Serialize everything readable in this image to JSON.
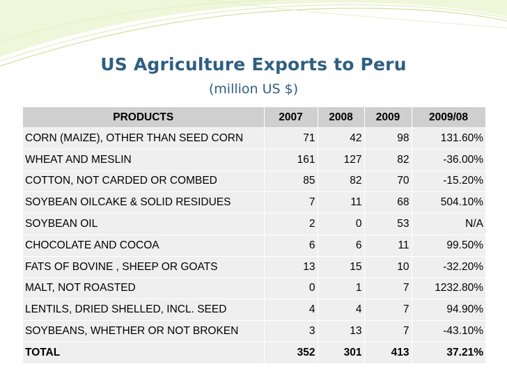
{
  "slide": {
    "title": "US Agriculture Exports to Peru",
    "subtitle": "(million US $)"
  },
  "table": {
    "headers": [
      "PRODUCTS",
      "2007",
      "2008",
      "2009",
      "2009/08"
    ],
    "rows": [
      [
        "CORN (MAIZE), OTHER THAN SEED CORN",
        "71",
        "42",
        "98",
        "131.60%"
      ],
      [
        "WHEAT AND MESLIN",
        "161",
        "127",
        "82",
        "-36.00%"
      ],
      [
        "COTTON, NOT CARDED OR COMBED",
        "85",
        "82",
        "70",
        "-15.20%"
      ],
      [
        "SOYBEAN OILCAKE & SOLID RESIDUES",
        "7",
        "11",
        "68",
        "504.10%"
      ],
      [
        "SOYBEAN OIL",
        "2",
        "0",
        "53",
        "N/A"
      ],
      [
        "CHOCOLATE AND  COCOA",
        "6",
        "6",
        "11",
        "99.50%"
      ],
      [
        "FATS OF BOVINE , SHEEP OR GOATS",
        "13",
        "15",
        "10",
        "-32.20%"
      ],
      [
        "MALT, NOT ROASTED",
        "0",
        "1",
        "7",
        "1232.80%"
      ],
      [
        "LENTILS, DRIED SHELLED, INCL. SEED",
        "4",
        "4",
        "7",
        "94.90%"
      ],
      [
        "SOYBEANS, WHETHER OR NOT BROKEN",
        "3",
        "13",
        "7",
        "-43.10%"
      ]
    ],
    "total": [
      "TOTAL",
      "352",
      "301",
      "413",
      "37.21%"
    ]
  },
  "colors": {
    "title": "#2e5f80",
    "header_bg": "#cfcfcf",
    "row_bg": "#efefef",
    "swoosh": "#d4e4a6"
  }
}
